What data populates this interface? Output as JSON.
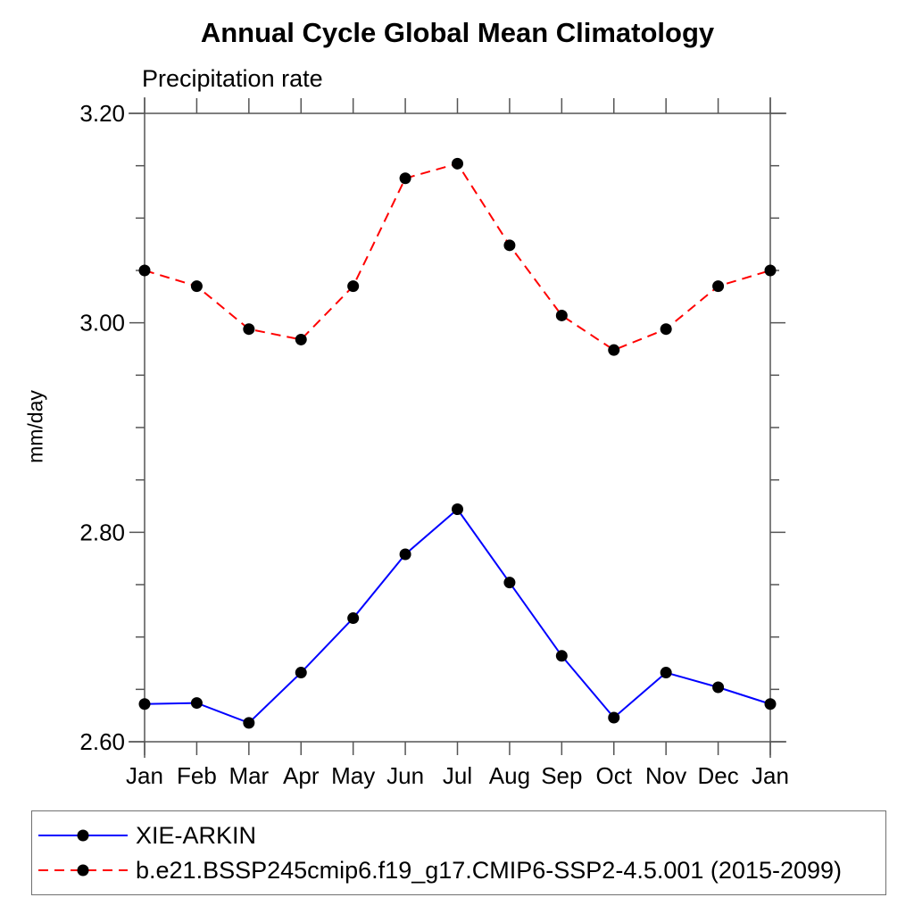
{
  "colors": {
    "background": "#ffffff",
    "axis": "#555555",
    "text": "#000000",
    "legend_border": "#707070",
    "marker": "#000000",
    "series_blue": "#0000ff",
    "series_red": "#ff0000"
  },
  "chart_data": {
    "type": "line",
    "title": "Annual Cycle Global Mean Climatology",
    "subtitle": "Precipitation rate",
    "ylabel": "mm/day",
    "xlabel": "",
    "categories": [
      "Jan",
      "Feb",
      "Mar",
      "Apr",
      "May",
      "Jun",
      "Jul",
      "Aug",
      "Sep",
      "Oct",
      "Nov",
      "Dec",
      "Jan"
    ],
    "ylim": [
      2.6,
      3.2
    ],
    "ytick_major": [
      2.6,
      2.8,
      3.0,
      3.2
    ],
    "ytick_labels": [
      "2.60",
      "2.80",
      "3.00",
      "3.20"
    ],
    "ytick_minor_step": 0.05,
    "grid": false,
    "legend_position": "bottom-box",
    "series": [
      {
        "name": "XIE-ARKIN",
        "color": "#0000ff",
        "line_style": "solid",
        "marker": "filled-circle",
        "marker_color": "#000000",
        "values": [
          2.636,
          2.637,
          2.618,
          2.666,
          2.718,
          2.779,
          2.822,
          2.752,
          2.682,
          2.623,
          2.666,
          2.652,
          2.636
        ]
      },
      {
        "name": "b.e21.BSSP245cmip6.f19_g17.CMIP6-SSP2-4.5.001 (2015-2099)",
        "color": "#ff0000",
        "line_style": "dashed",
        "marker": "filled-circle",
        "marker_color": "#000000",
        "values": [
          3.05,
          3.035,
          2.994,
          2.984,
          3.035,
          3.138,
          3.152,
          3.074,
          3.007,
          2.974,
          2.994,
          3.035,
          3.05
        ]
      }
    ]
  }
}
